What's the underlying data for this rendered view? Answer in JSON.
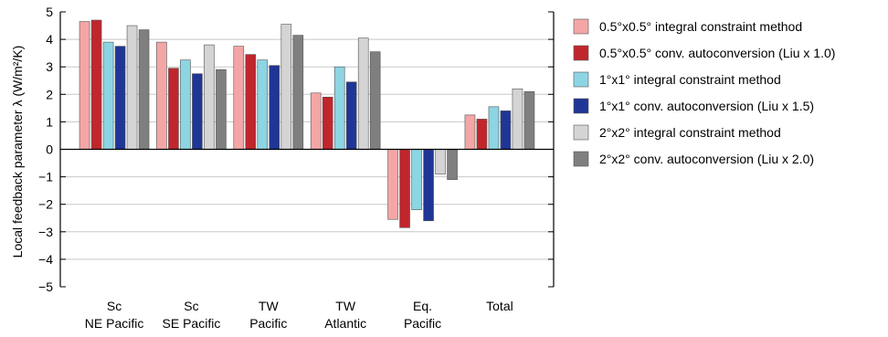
{
  "chart_data": {
    "type": "bar",
    "ylabel": "Local feedback parameter λ (W/m²/K)",
    "ylim": [
      -5,
      5
    ],
    "yticks": [
      5,
      4,
      3,
      2,
      1,
      0,
      -1,
      -2,
      -3,
      -4,
      -5
    ],
    "grid": true,
    "legend_position": "right",
    "categories": [
      [
        "Sc",
        "NE Pacific"
      ],
      [
        "Sc",
        "SE Pacific"
      ],
      [
        "TW",
        "Pacific"
      ],
      [
        "TW",
        "Atlantic"
      ],
      [
        "Eq.",
        "Pacific"
      ],
      [
        "Total"
      ]
    ],
    "series": [
      {
        "name": "0.5°x0.5° integral constraint method",
        "color": "#f4a6a6",
        "values": [
          4.65,
          3.9,
          3.75,
          2.05,
          -2.55,
          1.25
        ]
      },
      {
        "name": "0.5°x0.5° conv. autoconversion (Liu x 1.0)",
        "color": "#c0262c",
        "values": [
          4.7,
          2.95,
          3.45,
          1.9,
          -2.85,
          1.1
        ]
      },
      {
        "name": "1°x1° integral constraint method",
        "color": "#8dd5e3",
        "values": [
          3.9,
          3.25,
          3.25,
          3.0,
          -2.2,
          1.55
        ]
      },
      {
        "name": "1°x1° conv. autoconversion (Liu x 1.5)",
        "color": "#1f3696",
        "values": [
          3.75,
          2.75,
          3.05,
          2.45,
          -2.6,
          1.4
        ]
      },
      {
        "name": "2°x2° integral constraint method",
        "color": "#d4d4d4",
        "values": [
          4.5,
          3.8,
          4.55,
          4.05,
          -0.9,
          2.2
        ]
      },
      {
        "name": "2°x2° conv. autoconversion (Liu x 2.0)",
        "color": "#7f7f7f",
        "values": [
          4.35,
          2.9,
          4.15,
          3.55,
          -1.1,
          2.1
        ]
      }
    ]
  }
}
